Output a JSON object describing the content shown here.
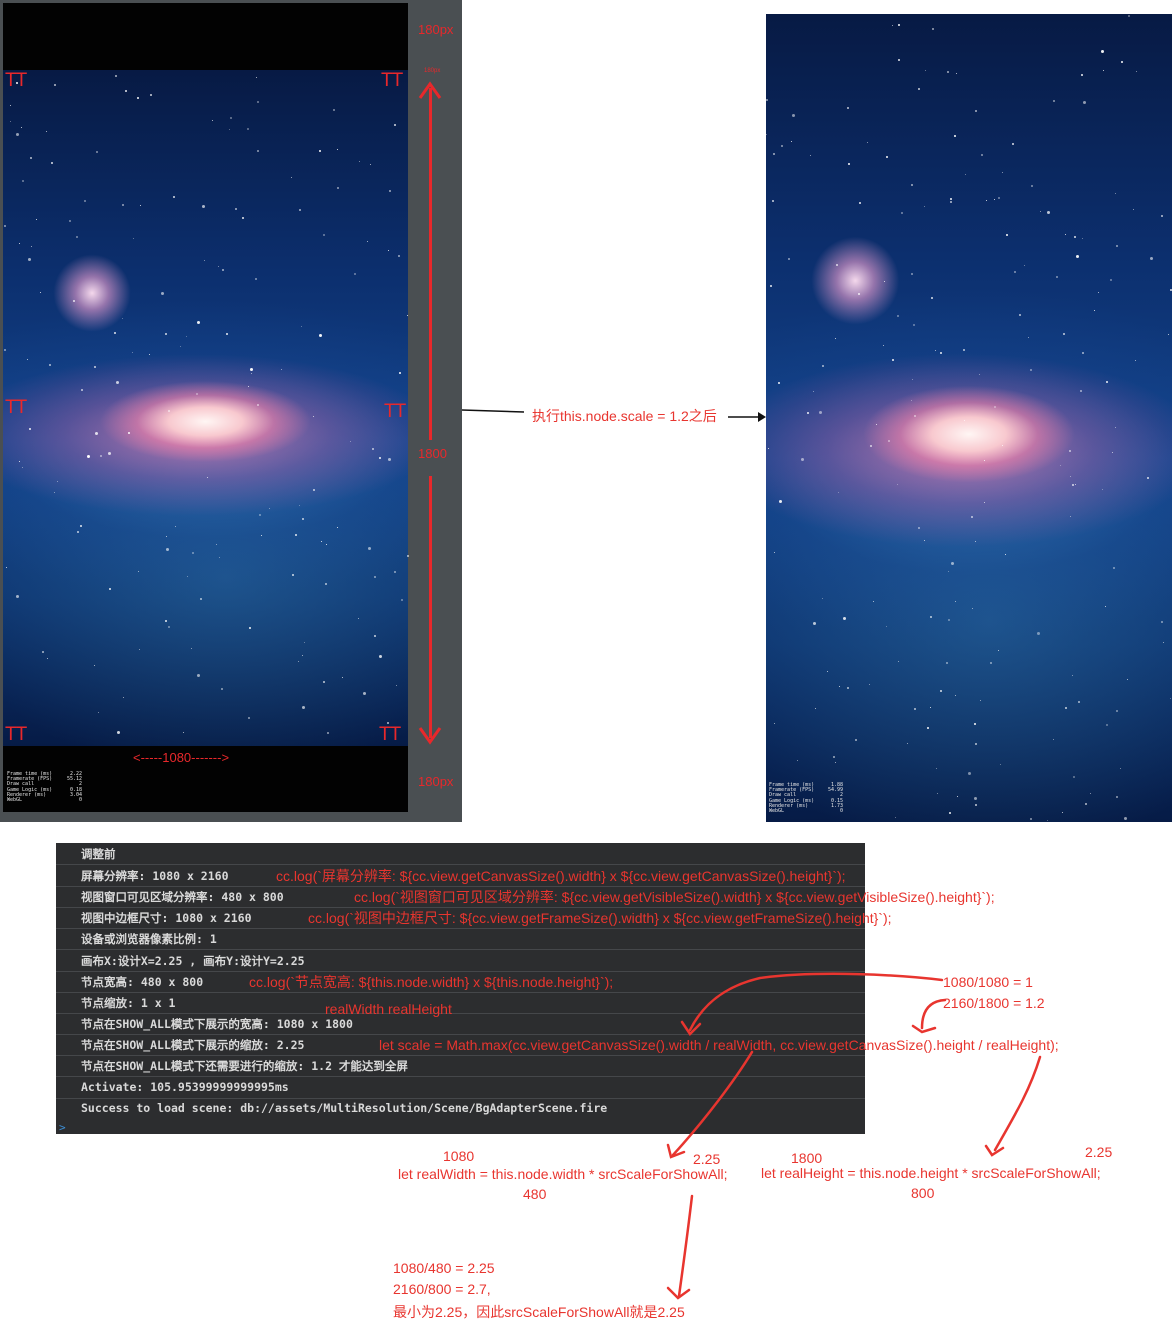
{
  "left_device": {
    "top_px_label": "180px",
    "bottom_px_label": "180px",
    "top_arrow_label": "180px",
    "height_label": "1800",
    "width_label": "<-----1080------->",
    "corner_labels": [
      "TT",
      "TT",
      "TT",
      "TT",
      "TT",
      "TT"
    ],
    "stats": {
      "labels": [
        "Frame time (ms)",
        "Framerate (FPS)",
        "Draw call",
        "Game Logic (ms)",
        "Renderer (ms)",
        "WebGL"
      ],
      "values": [
        "2.22",
        "55.12",
        "2",
        "0.18",
        "3.04",
        "0"
      ]
    }
  },
  "right_device": {
    "stats": {
      "labels": [
        "Frame time (ms)",
        "Framerate (FPS)",
        "Draw call",
        "Game Logic (ms)",
        "Renderer (ms)",
        "WebGL"
      ],
      "values": [
        "1.88",
        "54.99",
        "2",
        "0.15",
        "1.73",
        "0"
      ]
    }
  },
  "middle_annotation": "执行this.node.scale = 1.2之后",
  "console": {
    "rows": [
      "调整前",
      "屏幕分辨率: 1080 x 2160",
      "视图窗口可见区域分辨率: 480 x 800",
      "视图中边框尺寸: 1080 x 2160",
      "设备或浏览器像素比例: 1",
      "画布X:设计X=2.25 , 画布Y:设计Y=2.25",
      "节点宽高: 480 x 800",
      "节点缩放: 1 x 1",
      "节点在SHOW_ALL模式下展示的宽高: 1080 x 1800",
      "节点在SHOW_ALL模式下展示的缩放: 2.25",
      "节点在SHOW_ALL模式下还需要进行的缩放: 1.2 才能达到全屏",
      "Activate: 105.95399999999995ms",
      "Success to load scene: db://assets/MultiResolution/Scene/BgAdapterScene.fire"
    ],
    "prompt": ">"
  },
  "annotations": {
    "log_canvas": "cc.log(`屏幕分辨率: ${cc.view.getCanvasSize().width} x ${cc.view.getCanvasSize().height}`);",
    "log_visible": "cc.log(`视图窗口可见区域分辨率: ${cc.view.getVisibleSize().width} x ${cc.view.getVisibleSize().height}`);",
    "log_frame": "cc.log(`视图中边框尺寸: ${cc.view.getFrameSize().width} x ${cc.view.getFrameSize().height}`);",
    "log_node": "cc.log(`节点宽高: ${this.node.width} x ${this.node.height}`);",
    "calc_width_ratio": "1080/1080  = 1",
    "calc_height_ratio": "2160/1800 = 1.2",
    "real_labels": "realWidth   realHeight",
    "scale_formula": "let scale = Math.max(cc.view.getCanvasSize().width / realWidth, cc.view.getCanvasSize().height / realHeight);",
    "rw_top": "1080",
    "rw_scale": "2.25",
    "rw_code": "let realWidth = this.node.width * srcScaleForShowAll;",
    "rw_bottom": "480",
    "rh_top": "1800",
    "rh_scale": "2.25",
    "rh_code": "let realHeight = this.node.height * srcScaleForShowAll;",
    "rh_bottom": "800",
    "note_line1": "1080/480 = 2.25",
    "note_line2": "2160/800 = 2.7,",
    "note_line3": "最小为2.25，因此srcScaleForShowAll就是2.25"
  },
  "colors": {
    "annotation": "#e8352f",
    "console_bg": "#2c2d2f",
    "console_text": "#d9d9d9",
    "device_frame": "#4a4f52"
  }
}
